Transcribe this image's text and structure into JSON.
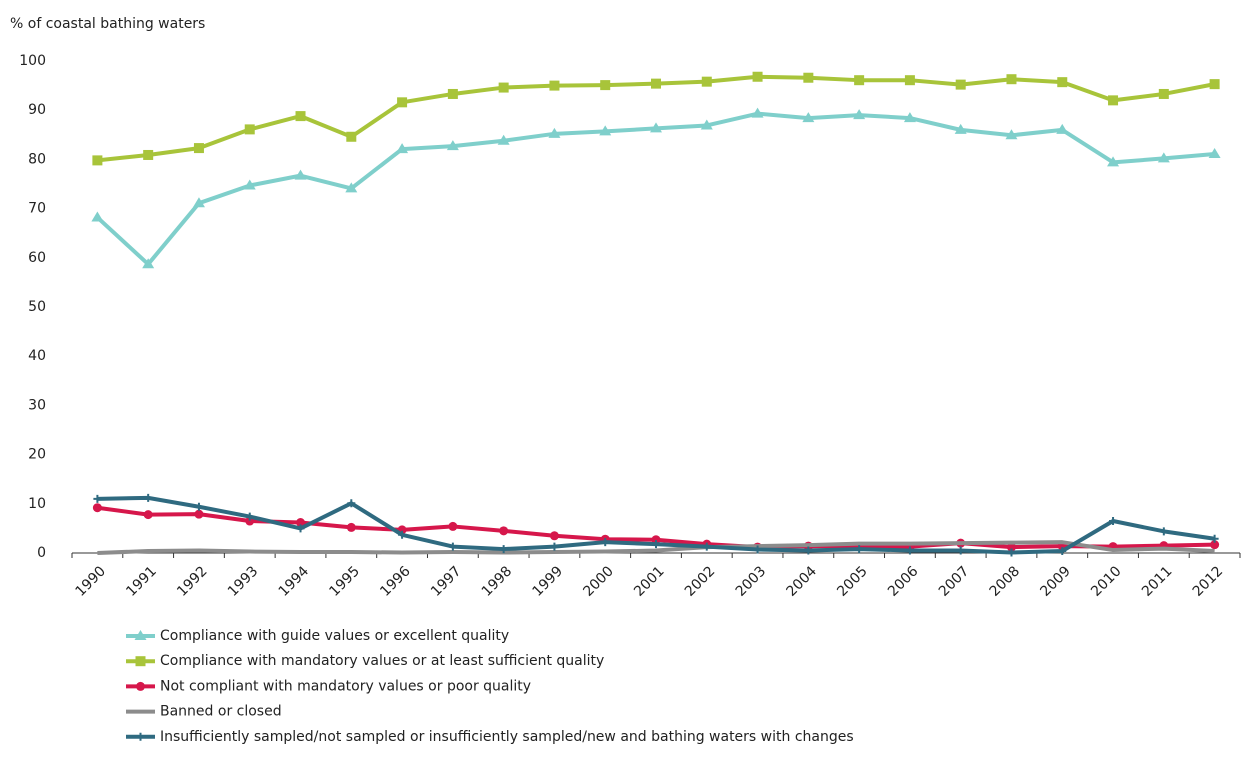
{
  "chart_data": {
    "type": "line",
    "y_axis_label": "% of coastal bathing waters",
    "categories": [
      "1990",
      "1991",
      "1992",
      "1993",
      "1994",
      "1995",
      "1996",
      "1997",
      "1998",
      "1999",
      "2000",
      "2001",
      "2002",
      "2003",
      "2004",
      "2005",
      "2006",
      "2007",
      "2008",
      "2009",
      "2010",
      "2011",
      "2012"
    ],
    "ylim": [
      0,
      100
    ],
    "yticks": [
      0,
      10,
      20,
      30,
      40,
      50,
      60,
      70,
      80,
      90,
      100
    ],
    "series": [
      {
        "name": "Compliance with guide values or excellent quality",
        "color": "#7fcfcb",
        "marker": "triangle",
        "values": [
          68.2,
          58.7,
          71.1,
          74.7,
          76.7,
          74.1,
          82.1,
          82.7,
          83.8,
          85.2,
          85.7,
          86.3,
          86.9,
          89.3,
          88.4,
          89.0,
          88.4,
          86.0,
          84.9,
          86.0,
          79.4,
          80.2,
          81.1
        ]
      },
      {
        "name": "Compliance with mandatory values or at least sufficient quality",
        "color": "#a8c43a",
        "marker": "square",
        "values": [
          79.8,
          80.9,
          82.3,
          86.1,
          88.8,
          84.6,
          91.6,
          93.3,
          94.6,
          95.0,
          95.1,
          95.4,
          95.8,
          96.8,
          96.6,
          96.1,
          96.1,
          95.2,
          96.3,
          95.7,
          92.0,
          93.3,
          95.3
        ]
      },
      {
        "name": "Not compliant with mandatory values or poor quality",
        "color": "#d6174b",
        "marker": "circle",
        "values": [
          9.2,
          7.8,
          7.9,
          6.5,
          6.2,
          5.2,
          4.7,
          5.4,
          4.5,
          3.5,
          2.8,
          2.7,
          1.8,
          1.2,
          1.4,
          1.3,
          1.3,
          2.0,
          1.2,
          1.4,
          1.3,
          1.5,
          1.7
        ]
      },
      {
        "name": "Banned or closed",
        "color": "#8c8c8c",
        "marker": "none",
        "values": [
          0.0,
          0.4,
          0.5,
          0.3,
          0.2,
          0.2,
          0.1,
          0.2,
          0.1,
          0.2,
          0.3,
          0.5,
          1.2,
          1.4,
          1.6,
          1.9,
          1.9,
          2.0,
          2.1,
          2.2,
          0.6,
          0.9,
          0.4
        ]
      },
      {
        "name": "Insufficiently sampled/not sampled or insufficiently sampled/new and bathing waters with changes",
        "color": "#2f6a80",
        "marker": "plus",
        "values": [
          11.0,
          11.2,
          9.4,
          7.4,
          5.0,
          10.1,
          3.7,
          1.3,
          0.8,
          1.3,
          2.2,
          1.8,
          1.3,
          0.7,
          0.5,
          0.8,
          0.5,
          0.5,
          0.1,
          0.4,
          6.5,
          4.4,
          2.9
        ]
      }
    ]
  }
}
